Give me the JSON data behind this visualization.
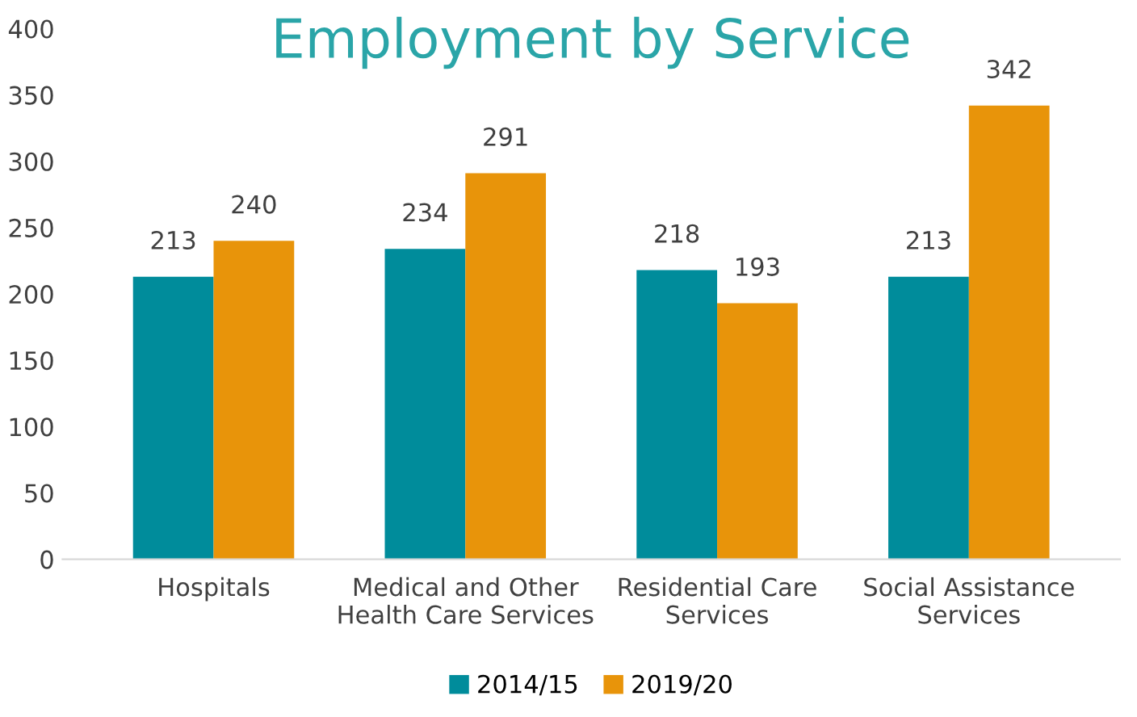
{
  "chart_data": {
    "type": "bar",
    "title": "Employment by Service",
    "categories": [
      "Hospitals",
      "Medical and Other\nHealth Care Services",
      "Residential Care\nServices",
      "Social Assistance\nServices"
    ],
    "series": [
      {
        "name": "2014/15",
        "color": "#008c9b",
        "values": [
          213,
          234,
          218,
          213
        ]
      },
      {
        "name": "2019/20",
        "color": "#e8940a",
        "values": [
          240,
          291,
          193,
          342
        ]
      }
    ],
    "ylim": [
      0,
      400
    ],
    "yticks": [
      0,
      50,
      100,
      150,
      200,
      250,
      300,
      350,
      400
    ],
    "data_labels": true,
    "legend": "bottom",
    "grid": false
  }
}
